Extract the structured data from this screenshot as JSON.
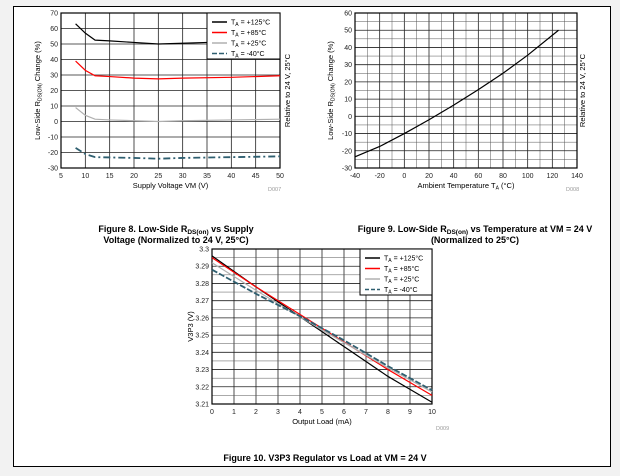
{
  "captions": {
    "fig8": {
      "pre": "Figure 8. Low-Side R",
      "sub": "DS(on)",
      "post": " vs Supply Voltage (Normalized to 24 V, 25°C)"
    },
    "fig9": {
      "pre": "Figure 9. Low-Side R",
      "sub": "DS(on)",
      "post": " vs Temperature at VM = 24 V (Normalized to 25°C)"
    },
    "fig10": {
      "pre": "Figure 10. V3P3 Regulator vs Load at VM = 24 V"
    }
  },
  "chart_data": [
    {
      "type": "line",
      "xlabel": "Supply Voltage VM (V)",
      "ylabel": {
        "pre": "Low-Side R",
        "sub": "DS(ON)",
        "post": " Change (%)"
      },
      "right_label": "Relative to 24 V, 25°C",
      "code": "D007",
      "xlim": [
        5,
        50
      ],
      "ylim": [
        -30,
        70
      ],
      "xticks": [
        "5",
        "10",
        "15",
        "20",
        "25",
        "30",
        "35",
        "40",
        "45",
        "50"
      ],
      "yticks": [
        "-30",
        "-20",
        "-10",
        "0",
        "10",
        "20",
        "30",
        "40",
        "50",
        "60",
        "70"
      ],
      "grid": true,
      "legend": "top-right",
      "series": [
        {
          "name": {
            "main": "T",
            "sub": "A",
            "rest": " = +125°C"
          },
          "color": "#000000",
          "style": "solid",
          "x": [
            8,
            10,
            12,
            15,
            20,
            25,
            30,
            35,
            40,
            50
          ],
          "y": [
            63,
            57,
            52.5,
            52,
            51,
            50,
            50.5,
            51,
            51,
            51
          ]
        },
        {
          "name": {
            "main": "T",
            "sub": "A",
            "rest": " = +85°C"
          },
          "color": "#ff0000",
          "style": "solid",
          "x": [
            8,
            10,
            12,
            15,
            20,
            25,
            30,
            40,
            50
          ],
          "y": [
            39,
            33,
            29.5,
            29,
            28,
            27.5,
            28,
            28.5,
            29.5
          ]
        },
        {
          "name": {
            "main": "T",
            "sub": "A",
            "rest": " = +25°C"
          },
          "color": "#b0b0b0",
          "style": "solid",
          "x": [
            8,
            10,
            12,
            15,
            20,
            25,
            30,
            40,
            50
          ],
          "y": [
            9,
            4,
            1.5,
            1,
            0.5,
            0,
            0.5,
            1,
            1.5
          ]
        },
        {
          "name": {
            "main": "T",
            "sub": "A",
            "rest": " = -40°C"
          },
          "color": "#2f5f70",
          "style": "dashdot",
          "x": [
            8,
            10,
            12,
            20,
            25,
            30,
            40,
            50
          ],
          "y": [
            -17,
            -21,
            -23,
            -23.5,
            -24,
            -23.5,
            -23,
            -22.5
          ]
        }
      ]
    },
    {
      "type": "line",
      "xlabel": {
        "pre": "Ambient Temperature T",
        "sub": "A",
        "post": " (°C)"
      },
      "ylabel": {
        "pre": "Low-Side R",
        "sub": "DS(ON)",
        "post": " Change (%)"
      },
      "right_label": "Relative to 24 V, 25°C",
      "code": "D008",
      "xlim": [
        -40,
        140
      ],
      "ylim": [
        -30,
        60
      ],
      "xticks": [
        "-40",
        "-20",
        "0",
        "20",
        "40",
        "60",
        "80",
        "100",
        "120",
        "140"
      ],
      "yticks": [
        "-30",
        "-20",
        "-10",
        "0",
        "10",
        "20",
        "30",
        "40",
        "50",
        "60"
      ],
      "grid": true,
      "series": [
        {
          "color": "#000000",
          "style": "solid",
          "x": [
            -40,
            -20,
            0,
            20,
            40,
            60,
            80,
            100,
            125
          ],
          "y": [
            -23.5,
            -17.5,
            -10,
            -2,
            6.5,
            15.5,
            25,
            35.5,
            50
          ]
        }
      ]
    },
    {
      "type": "line",
      "xlabel": "Output Load (mA)",
      "ylabel": "V3P3 (V)",
      "code": "D009",
      "xlim": [
        0,
        10
      ],
      "ylim": [
        3.21,
        3.3
      ],
      "xticks": [
        "0",
        "1",
        "2",
        "3",
        "4",
        "5",
        "6",
        "7",
        "8",
        "9",
        "10"
      ],
      "yticks": [
        "3.21",
        "3.22",
        "3.23",
        "3.24",
        "3.25",
        "3.26",
        "3.27",
        "3.28",
        "3.29",
        "3.3"
      ],
      "grid": true,
      "legend": "top-right",
      "series": [
        {
          "name": {
            "main": "T",
            "sub": "A",
            "rest": " = +125°C"
          },
          "color": "#000000",
          "style": "solid",
          "x": [
            0,
            2,
            5,
            8,
            10
          ],
          "y": [
            3.296,
            3.278,
            3.252,
            3.226,
            3.211
          ]
        },
        {
          "name": {
            "main": "T",
            "sub": "A",
            "rest": " = +85°C"
          },
          "color": "#ff0000",
          "style": "solid",
          "x": [
            0,
            2,
            5,
            8,
            10
          ],
          "y": [
            3.295,
            3.278,
            3.254,
            3.23,
            3.215
          ]
        },
        {
          "name": {
            "main": "T",
            "sub": "A",
            "rest": " = +25°C"
          },
          "color": "#b0b0b0",
          "style": "solid",
          "x": [
            0,
            2,
            5,
            8,
            10
          ],
          "y": [
            3.292,
            3.276,
            3.253,
            3.231,
            3.217
          ]
        },
        {
          "name": {
            "main": "T",
            "sub": "A",
            "rest": " = -40°C"
          },
          "color": "#2f5f70",
          "style": "dashed",
          "x": [
            0,
            2,
            4,
            6,
            8,
            10
          ],
          "y": [
            3.288,
            3.274,
            3.261,
            3.247,
            3.232,
            3.218
          ]
        }
      ]
    }
  ]
}
